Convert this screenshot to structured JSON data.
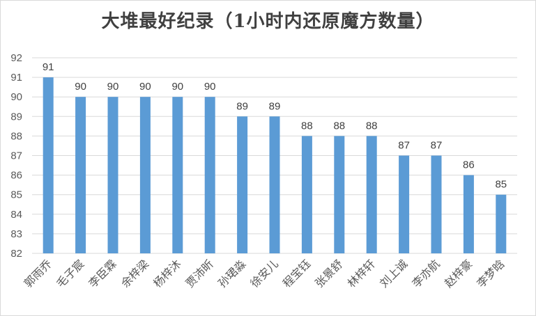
{
  "title": "大堆最好纪录（1小时内还原魔方数量）",
  "chart_data": {
    "type": "bar",
    "title": "大堆最好纪录（1小时内还原魔方数量）",
    "xlabel": "",
    "ylabel": "",
    "categories": [
      "郭雨乔",
      "毛子宸",
      "李臣霖",
      "余梓梁",
      "杨梓沐",
      "贾沛昕",
      "孙珺淼",
      "徐安儿",
      "程宝钰",
      "张景舒",
      "林梓轩",
      "刘上诚",
      "李亦航",
      "赵梓豪",
      "李梦晗"
    ],
    "values": [
      91,
      90,
      90,
      90,
      90,
      90,
      89,
      89,
      88,
      88,
      88,
      87,
      87,
      86,
      85
    ],
    "ylim": [
      82,
      92
    ],
    "yticks": [
      82,
      83,
      84,
      85,
      86,
      87,
      88,
      89,
      90,
      91,
      92
    ],
    "grid": true,
    "data_labels": true,
    "bar_color": "#5b9bd5",
    "grid_color": "#d9d9d9"
  }
}
